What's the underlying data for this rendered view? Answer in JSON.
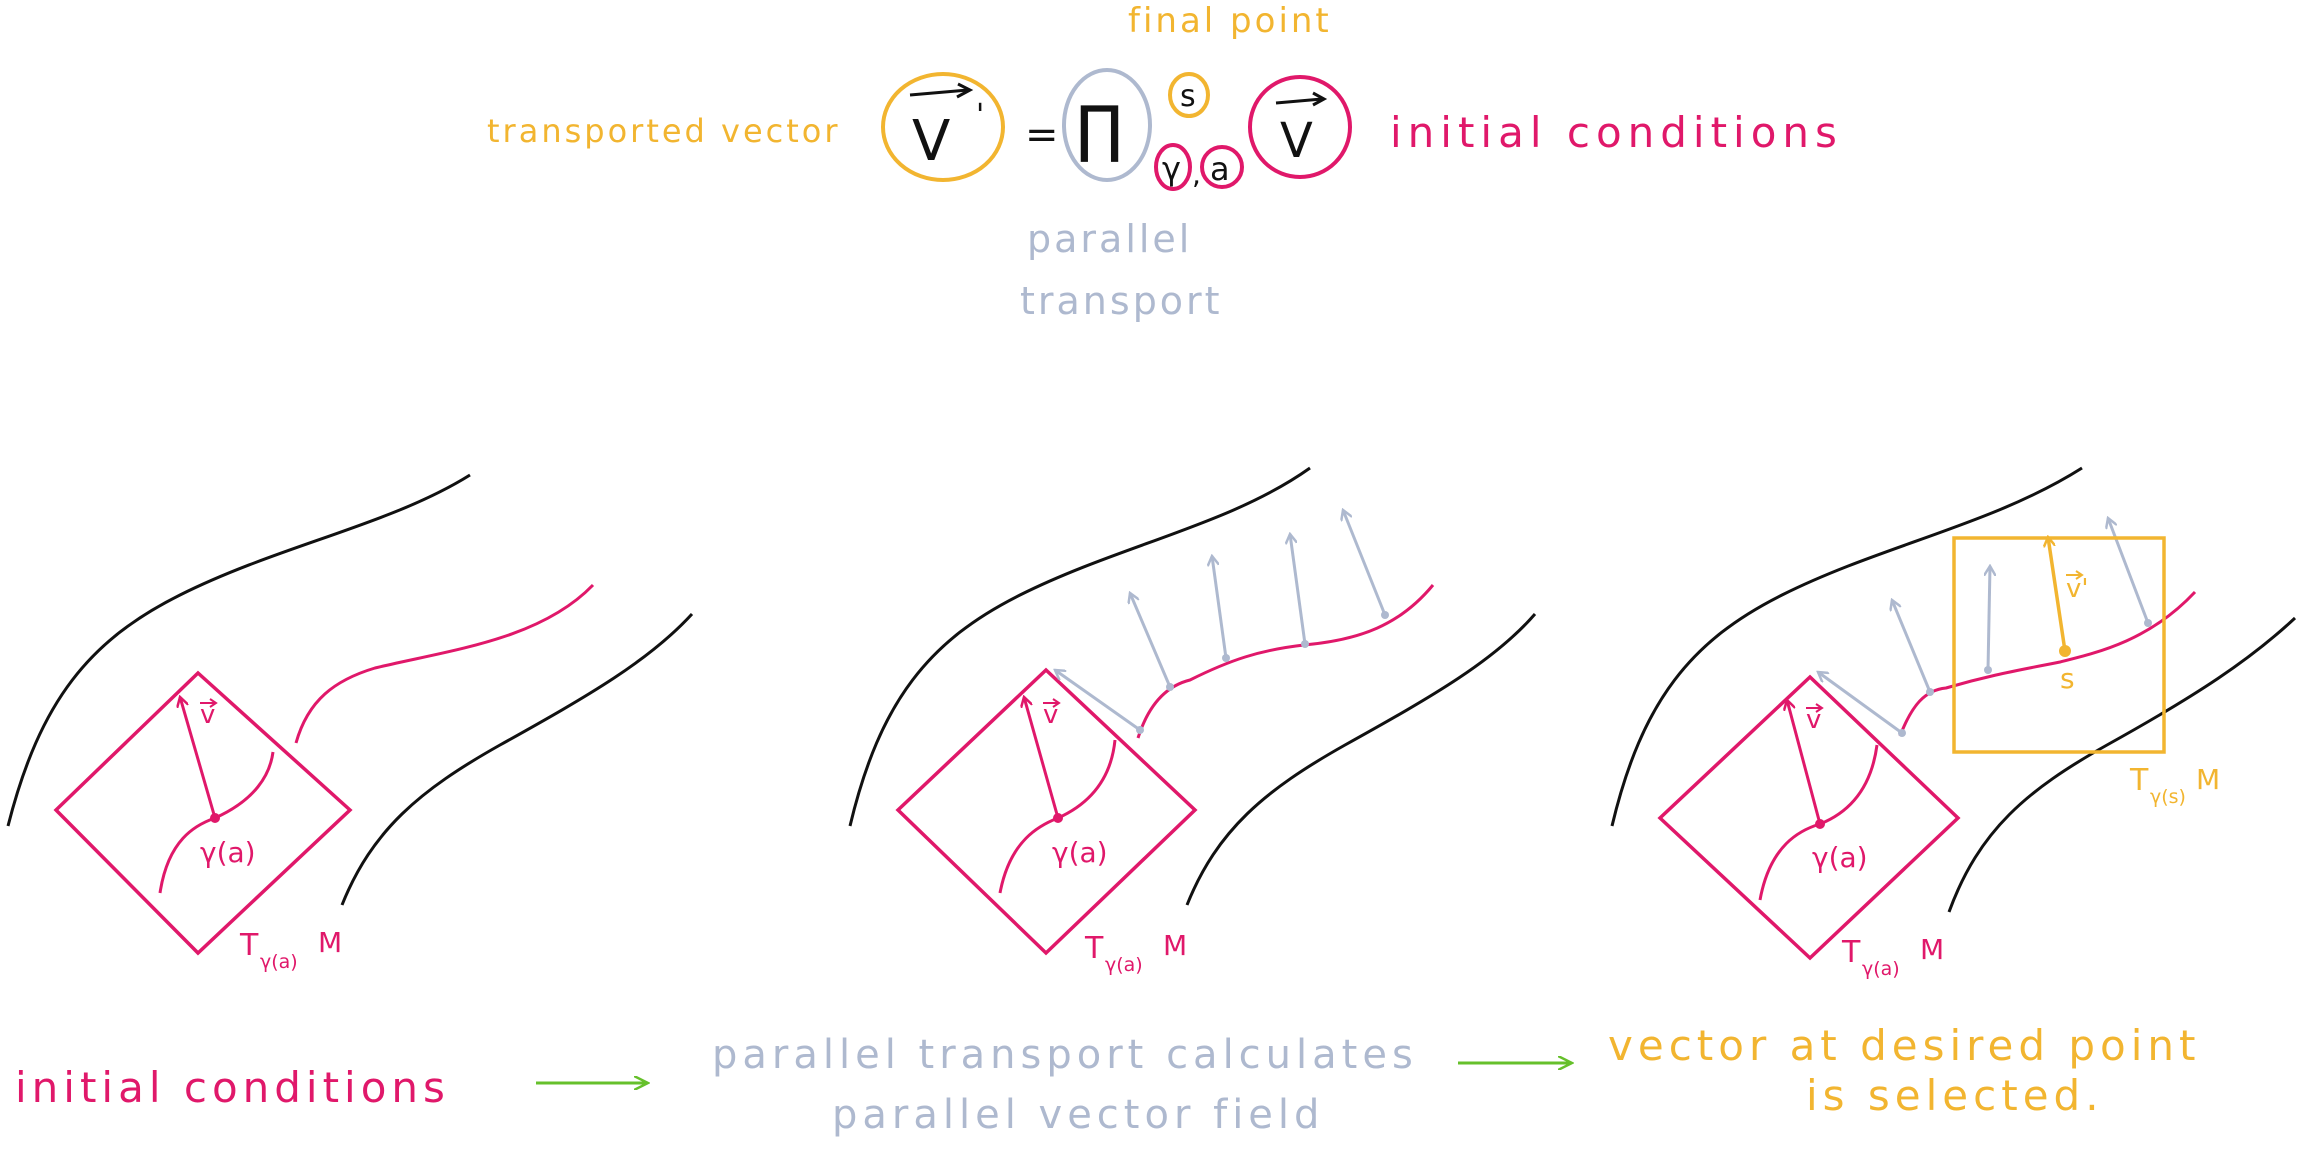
{
  "colors": {
    "pink": "#E0186A",
    "yellow": "#F2B530",
    "blue_gray": "#AEB9CF",
    "green": "#66C02B",
    "black": "#111111"
  },
  "equation": {
    "final_point_label": "final point",
    "transported_vector_label": "transported vector",
    "lhs_symbol": "V",
    "lhs_prime": "'",
    "equals": "=",
    "operator_symbol": "∏",
    "superscript": "s",
    "subscript_gamma": "γ",
    "subscript_comma": ",",
    "subscript_a": "a",
    "rhs_symbol": "V",
    "initial_conditions_label": "initial conditions",
    "parallel_label_line1": "parallel",
    "parallel_label_line2": "transport"
  },
  "panels": [
    {
      "vector_label": "v",
      "point_label": "γ(a)",
      "tangent_space_T": "T",
      "tangent_space_sub": "γ(a)",
      "tangent_space_M": "M"
    },
    {
      "vector_label": "v",
      "point_label": "γ(a)",
      "tangent_space_T": "T",
      "tangent_space_sub": "γ(a)",
      "tangent_space_M": "M"
    },
    {
      "vector_label": "v",
      "point_label": "γ(a)",
      "tangent_space_T": "T",
      "tangent_space_sub": "γ(a)",
      "tangent_space_M": "M",
      "selected_vector_label": "v'",
      "selected_point_label": "s",
      "selected_space_T": "T",
      "selected_space_sub": "γ(s)",
      "selected_space_M": "M"
    }
  ],
  "captions": {
    "step1": "initial conditions",
    "step2_line1": "parallel transport calculates",
    "step2_line2": "parallel vector field",
    "step3_line1": "vector at desired point",
    "step3_line2": "is selected."
  }
}
